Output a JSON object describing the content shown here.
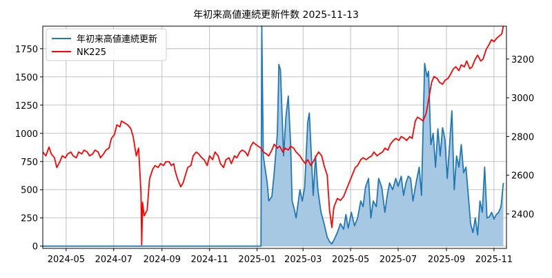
{
  "chart_data": {
    "type": "line",
    "title": "年初来高値連続更新件数 2025-11-13",
    "grid": true,
    "legend": {
      "placement": "top-left",
      "entries": [
        {
          "label": "年初来高値連続更新",
          "color": "#1f77b4"
        },
        {
          "label": "NK225",
          "color": "#ff0000"
        }
      ]
    },
    "x_ticks": [
      "2024-05",
      "2024-07",
      "2024-09",
      "2024-11",
      "2025-01",
      "2025-03",
      "2025-05",
      "2025-07",
      "2025-09",
      "2025-11"
    ],
    "x_range": [
      "2024-04-01",
      "2025-11-17"
    ],
    "y_left": {
      "range": [
        -20,
        1950
      ],
      "ticks": [
        0,
        250,
        500,
        750,
        1000,
        1250,
        1500,
        1750
      ]
    },
    "y_right": {
      "range": [
        2222,
        3370
      ],
      "ticks": [
        2400,
        2600,
        2800,
        3000,
        3200
      ]
    },
    "series": [
      {
        "name": "年初来高値連続更新",
        "axis": "left",
        "color": "#1f77b4",
        "fill": "#a6c8e2",
        "points": [
          [
            "2024-04-01",
            0
          ],
          [
            "2024-12-30",
            0
          ],
          [
            "2025-01-06",
            0
          ],
          [
            "2025-01-07",
            1950
          ],
          [
            "2025-01-09",
            800
          ],
          [
            "2025-01-14",
            560
          ],
          [
            "2025-01-16",
            400
          ],
          [
            "2025-01-20",
            440
          ],
          [
            "2025-01-23",
            650
          ],
          [
            "2025-01-27",
            1000
          ],
          [
            "2025-01-29",
            1610
          ],
          [
            "2025-01-31",
            1560
          ],
          [
            "2025-02-04",
            800
          ],
          [
            "2025-02-07",
            1150
          ],
          [
            "2025-02-10",
            1330
          ],
          [
            "2025-02-13",
            900
          ],
          [
            "2025-02-15",
            400
          ],
          [
            "2025-02-18",
            320
          ],
          [
            "2025-02-20",
            250
          ],
          [
            "2025-02-25",
            500
          ],
          [
            "2025-02-28",
            400
          ],
          [
            "2025-03-03",
            520
          ],
          [
            "2025-03-07",
            1100
          ],
          [
            "2025-03-09",
            1180
          ],
          [
            "2025-03-11",
            900
          ],
          [
            "2025-03-14",
            450
          ],
          [
            "2025-03-17",
            800
          ],
          [
            "2025-03-20",
            500
          ],
          [
            "2025-03-24",
            300
          ],
          [
            "2025-03-28",
            200
          ],
          [
            "2025-04-01",
            80
          ],
          [
            "2025-04-04",
            40
          ],
          [
            "2025-04-07",
            20
          ],
          [
            "2025-04-10",
            60
          ],
          [
            "2025-04-14",
            120
          ],
          [
            "2025-04-18",
            200
          ],
          [
            "2025-04-22",
            150
          ],
          [
            "2025-04-25",
            280
          ],
          [
            "2025-04-28",
            160
          ],
          [
            "2025-05-02",
            300
          ],
          [
            "2025-05-06",
            180
          ],
          [
            "2025-05-10",
            250
          ],
          [
            "2025-05-14",
            400
          ],
          [
            "2025-05-17",
            350
          ],
          [
            "2025-05-20",
            520
          ],
          [
            "2025-05-24",
            600
          ],
          [
            "2025-05-27",
            250
          ],
          [
            "2025-05-30",
            400
          ],
          [
            "2025-06-03",
            350
          ],
          [
            "2025-06-06",
            600
          ],
          [
            "2025-06-10",
            520
          ],
          [
            "2025-06-14",
            300
          ],
          [
            "2025-06-17",
            450
          ],
          [
            "2025-06-20",
            560
          ],
          [
            "2025-06-24",
            500
          ],
          [
            "2025-06-28",
            600
          ],
          [
            "2025-07-01",
            530
          ],
          [
            "2025-07-05",
            620
          ],
          [
            "2025-07-08",
            450
          ],
          [
            "2025-07-11",
            560
          ],
          [
            "2025-07-14",
            620
          ],
          [
            "2025-07-17",
            600
          ],
          [
            "2025-07-20",
            400
          ],
          [
            "2025-07-24",
            560
          ],
          [
            "2025-07-28",
            700
          ],
          [
            "2025-07-31",
            450
          ],
          [
            "2025-08-04",
            1620
          ],
          [
            "2025-08-07",
            1500
          ],
          [
            "2025-08-09",
            1550
          ],
          [
            "2025-08-12",
            900
          ],
          [
            "2025-08-15",
            1000
          ],
          [
            "2025-08-18",
            700
          ],
          [
            "2025-08-21",
            1040
          ],
          [
            "2025-08-24",
            800
          ],
          [
            "2025-08-27",
            1050
          ],
          [
            "2025-08-30",
            950
          ],
          [
            "2025-09-02",
            600
          ],
          [
            "2025-09-05",
            900
          ],
          [
            "2025-09-08",
            1200
          ],
          [
            "2025-09-11",
            500
          ],
          [
            "2025-09-14",
            800
          ],
          [
            "2025-09-17",
            700
          ],
          [
            "2025-09-20",
            900
          ],
          [
            "2025-09-23",
            650
          ],
          [
            "2025-09-26",
            700
          ],
          [
            "2025-09-29",
            450
          ],
          [
            "2025-10-02",
            200
          ],
          [
            "2025-10-05",
            120
          ],
          [
            "2025-10-08",
            250
          ],
          [
            "2025-10-11",
            100
          ],
          [
            "2025-10-14",
            400
          ],
          [
            "2025-10-17",
            300
          ],
          [
            "2025-10-20",
            700
          ],
          [
            "2025-10-23",
            250
          ],
          [
            "2025-10-26",
            260
          ],
          [
            "2025-10-29",
            300
          ],
          [
            "2025-11-01",
            240
          ],
          [
            "2025-11-04",
            280
          ],
          [
            "2025-11-07",
            300
          ],
          [
            "2025-11-10",
            350
          ],
          [
            "2025-11-13",
            560
          ]
        ]
      },
      {
        "name": "NK225",
        "axis": "right",
        "color": "#ff0000",
        "points": [
          [
            "2024-04-01",
            2720
          ],
          [
            "2024-04-05",
            2700
          ],
          [
            "2024-04-09",
            2745
          ],
          [
            "2024-04-12",
            2710
          ],
          [
            "2024-04-16",
            2690
          ],
          [
            "2024-04-19",
            2640
          ],
          [
            "2024-04-23",
            2670
          ],
          [
            "2024-04-26",
            2700
          ],
          [
            "2024-04-30",
            2690
          ],
          [
            "2024-05-03",
            2710
          ],
          [
            "2024-05-07",
            2720
          ],
          [
            "2024-05-10",
            2700
          ],
          [
            "2024-05-14",
            2690
          ],
          [
            "2024-05-17",
            2720
          ],
          [
            "2024-05-21",
            2710
          ],
          [
            "2024-05-24",
            2730
          ],
          [
            "2024-05-28",
            2720
          ],
          [
            "2024-05-31",
            2700
          ],
          [
            "2024-06-04",
            2710
          ],
          [
            "2024-06-07",
            2730
          ],
          [
            "2024-06-11",
            2720
          ],
          [
            "2024-06-14",
            2690
          ],
          [
            "2024-06-18",
            2710
          ],
          [
            "2024-06-21",
            2730
          ],
          [
            "2024-06-25",
            2740
          ],
          [
            "2024-06-28",
            2790
          ],
          [
            "2024-07-02",
            2810
          ],
          [
            "2024-07-05",
            2860
          ],
          [
            "2024-07-09",
            2850
          ],
          [
            "2024-07-11",
            2880
          ],
          [
            "2024-07-15",
            2870
          ],
          [
            "2024-07-19",
            2860
          ],
          [
            "2024-07-23",
            2840
          ],
          [
            "2024-07-26",
            2800
          ],
          [
            "2024-07-30",
            2700
          ],
          [
            "2024-08-02",
            2740
          ],
          [
            "2024-08-05",
            2510
          ],
          [
            "2024-08-06",
            2240
          ],
          [
            "2024-08-07",
            2460
          ],
          [
            "2024-08-09",
            2390
          ],
          [
            "2024-08-13",
            2420
          ],
          [
            "2024-08-16",
            2580
          ],
          [
            "2024-08-20",
            2630
          ],
          [
            "2024-08-23",
            2650
          ],
          [
            "2024-08-27",
            2640
          ],
          [
            "2024-08-30",
            2660
          ],
          [
            "2024-09-03",
            2650
          ],
          [
            "2024-09-06",
            2670
          ],
          [
            "2024-09-10",
            2670
          ],
          [
            "2024-09-13",
            2650
          ],
          [
            "2024-09-16",
            2660
          ],
          [
            "2024-09-18",
            2620
          ],
          [
            "2024-09-21",
            2580
          ],
          [
            "2024-09-25",
            2540
          ],
          [
            "2024-09-28",
            2560
          ],
          [
            "2024-10-01",
            2600
          ],
          [
            "2024-10-04",
            2640
          ],
          [
            "2024-10-08",
            2650
          ],
          [
            "2024-10-11",
            2700
          ],
          [
            "2024-10-15",
            2720
          ],
          [
            "2024-10-18",
            2710
          ],
          [
            "2024-10-22",
            2690
          ],
          [
            "2024-10-25",
            2680
          ],
          [
            "2024-10-29",
            2650
          ],
          [
            "2024-11-01",
            2700
          ],
          [
            "2024-11-05",
            2680
          ],
          [
            "2024-11-08",
            2720
          ],
          [
            "2024-11-12",
            2700
          ],
          [
            "2024-11-15",
            2660
          ],
          [
            "2024-11-19",
            2640
          ],
          [
            "2024-11-22",
            2680
          ],
          [
            "2024-11-26",
            2690
          ],
          [
            "2024-11-29",
            2660
          ],
          [
            "2024-12-03",
            2700
          ],
          [
            "2024-12-06",
            2690
          ],
          [
            "2024-12-10",
            2720
          ],
          [
            "2024-12-13",
            2730
          ],
          [
            "2024-12-17",
            2720
          ],
          [
            "2024-12-20",
            2700
          ],
          [
            "2024-12-24",
            2750
          ],
          [
            "2024-12-27",
            2770
          ],
          [
            "2024-12-30",
            2760
          ],
          [
            "2025-01-06",
            2740
          ],
          [
            "2025-01-09",
            2720
          ],
          [
            "2025-01-13",
            2710
          ],
          [
            "2025-01-16",
            2700
          ],
          [
            "2025-01-20",
            2730
          ],
          [
            "2025-01-23",
            2760
          ],
          [
            "2025-01-27",
            2740
          ],
          [
            "2025-01-30",
            2750
          ],
          [
            "2025-02-03",
            2720
          ],
          [
            "2025-02-06",
            2740
          ],
          [
            "2025-02-10",
            2730
          ],
          [
            "2025-02-13",
            2750
          ],
          [
            "2025-02-17",
            2740
          ],
          [
            "2025-02-20",
            2720
          ],
          [
            "2025-02-25",
            2700
          ],
          [
            "2025-02-28",
            2680
          ],
          [
            "2025-03-04",
            2660
          ],
          [
            "2025-03-07",
            2680
          ],
          [
            "2025-03-11",
            2650
          ],
          [
            "2025-03-14",
            2670
          ],
          [
            "2025-03-18",
            2700
          ],
          [
            "2025-03-21",
            2720
          ],
          [
            "2025-03-25",
            2700
          ],
          [
            "2025-03-28",
            2650
          ],
          [
            "2025-04-01",
            2600
          ],
          [
            "2025-04-04",
            2420
          ],
          [
            "2025-04-07",
            2330
          ],
          [
            "2025-04-09",
            2420
          ],
          [
            "2025-04-10",
            2440
          ],
          [
            "2025-04-14",
            2480
          ],
          [
            "2025-04-18",
            2470
          ],
          [
            "2025-04-22",
            2490
          ],
          [
            "2025-04-25",
            2520
          ],
          [
            "2025-04-30",
            2570
          ],
          [
            "2025-05-03",
            2600
          ],
          [
            "2025-05-07",
            2640
          ],
          [
            "2025-05-10",
            2650
          ],
          [
            "2025-05-14",
            2680
          ],
          [
            "2025-05-17",
            2690
          ],
          [
            "2025-05-21",
            2680
          ],
          [
            "2025-05-24",
            2690
          ],
          [
            "2025-05-28",
            2700
          ],
          [
            "2025-05-31",
            2720
          ],
          [
            "2025-06-04",
            2700
          ],
          [
            "2025-06-07",
            2710
          ],
          [
            "2025-06-11",
            2720
          ],
          [
            "2025-06-14",
            2740
          ],
          [
            "2025-06-18",
            2730
          ],
          [
            "2025-06-21",
            2760
          ],
          [
            "2025-06-25",
            2780
          ],
          [
            "2025-06-28",
            2790
          ],
          [
            "2025-07-02",
            2780
          ],
          [
            "2025-07-05",
            2800
          ],
          [
            "2025-07-09",
            2790
          ],
          [
            "2025-07-12",
            2780
          ],
          [
            "2025-07-16",
            2800
          ],
          [
            "2025-07-19",
            2790
          ],
          [
            "2025-07-23",
            2880
          ],
          [
            "2025-07-26",
            2900
          ],
          [
            "2025-07-30",
            2890
          ],
          [
            "2025-08-02",
            2880
          ],
          [
            "2025-08-06",
            2920
          ],
          [
            "2025-08-09",
            2990
          ],
          [
            "2025-08-13",
            3080
          ],
          [
            "2025-08-16",
            3110
          ],
          [
            "2025-08-20",
            3100
          ],
          [
            "2025-08-23",
            3080
          ],
          [
            "2025-08-27",
            3070
          ],
          [
            "2025-08-30",
            3090
          ],
          [
            "2025-09-03",
            3100
          ],
          [
            "2025-09-06",
            3120
          ],
          [
            "2025-09-10",
            3150
          ],
          [
            "2025-09-13",
            3160
          ],
          [
            "2025-09-17",
            3140
          ],
          [
            "2025-09-20",
            3170
          ],
          [
            "2025-09-24",
            3160
          ],
          [
            "2025-09-27",
            3190
          ],
          [
            "2025-10-01",
            3150
          ],
          [
            "2025-10-04",
            3160
          ],
          [
            "2025-10-08",
            3200
          ],
          [
            "2025-10-11",
            3220
          ],
          [
            "2025-10-15",
            3190
          ],
          [
            "2025-10-18",
            3200
          ],
          [
            "2025-10-22",
            3250
          ],
          [
            "2025-10-25",
            3270
          ],
          [
            "2025-10-29",
            3300
          ],
          [
            "2025-11-01",
            3290
          ],
          [
            "2025-11-05",
            3310
          ],
          [
            "2025-11-08",
            3320
          ],
          [
            "2025-11-11",
            3330
          ],
          [
            "2025-11-13",
            3370
          ]
        ]
      }
    ]
  }
}
